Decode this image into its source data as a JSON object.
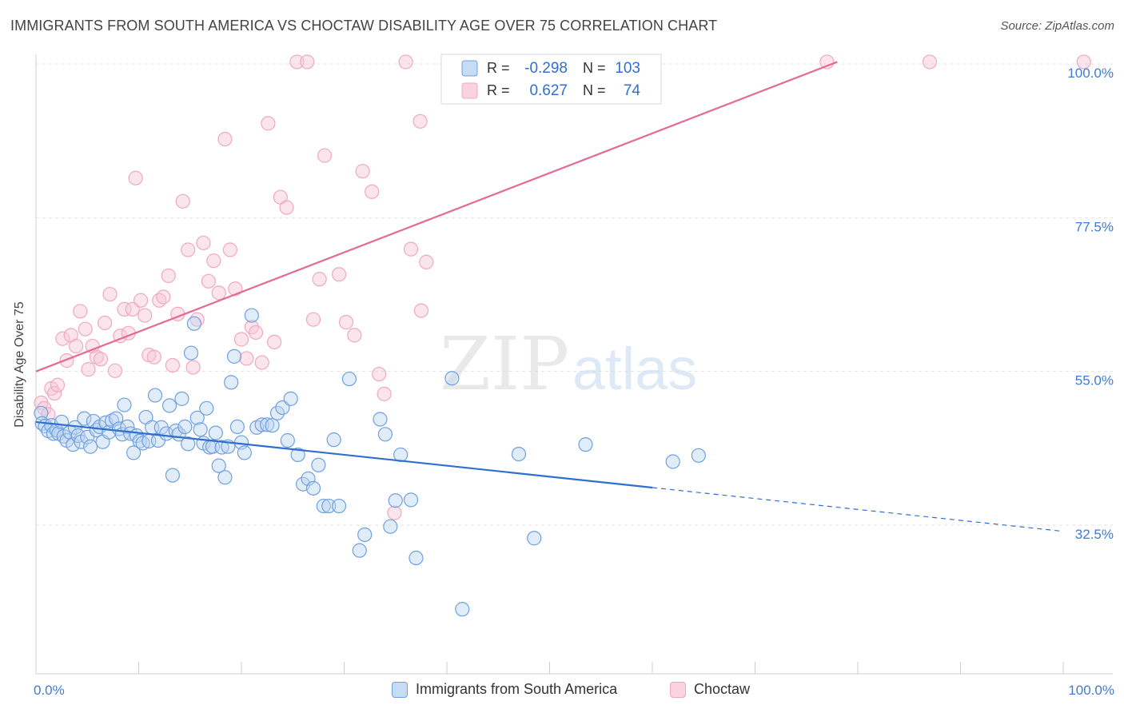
{
  "title": "IMMIGRANTS FROM SOUTH AMERICA VS CHOCTAW DISABILITY AGE OVER 75 CORRELATION CHART",
  "source": "Source: ZipAtlas.com",
  "watermark": {
    "zip": "ZIP",
    "atlas": "atlas"
  },
  "chart_data": {
    "type": "scatter",
    "xlabel": "",
    "ylabel": "Disability Age Over 75",
    "xlim": [
      0,
      100
    ],
    "ylim": [
      14,
      102
    ],
    "x_tick_labels": [
      {
        "value": 0,
        "label": "0.0%"
      },
      {
        "value": 100,
        "label": "100.0%"
      }
    ],
    "y_ticks": [
      {
        "value": 100.0,
        "label": "100.0%"
      },
      {
        "value": 77.5,
        "label": "77.5%"
      },
      {
        "value": 55.0,
        "label": "55.0%"
      },
      {
        "value": 32.5,
        "label": "32.5%"
      }
    ],
    "grid": true,
    "legend_top": [
      {
        "r_label": "R =",
        "r_value": "-0.298",
        "n_label": "N =",
        "n_value": "103"
      },
      {
        "r_label": "R =",
        "r_value": "0.627",
        "n_label": "N =",
        "n_value": "74"
      }
    ],
    "series": [
      {
        "name": "Immigrants from South America",
        "color": "#6fa0e0",
        "line_color": "#2f6fd0",
        "trend": {
          "x0": 0,
          "y0": 47.6,
          "x1": 60,
          "y1": 38.0,
          "dash_to_x": 100,
          "dash_y": 31.6
        },
        "points": [
          [
            0.5,
            48.9
          ],
          [
            0.6,
            47.4
          ],
          [
            0.9,
            47.0
          ],
          [
            1.2,
            46.3
          ],
          [
            1.5,
            47.1
          ],
          [
            1.7,
            45.9
          ],
          [
            2.0,
            46.4
          ],
          [
            2.2,
            45.9
          ],
          [
            2.5,
            47.6
          ],
          [
            2.7,
            45.5
          ],
          [
            3.0,
            44.9
          ],
          [
            3.3,
            46.1
          ],
          [
            3.6,
            44.3
          ],
          [
            3.8,
            46.8
          ],
          [
            4.1,
            45.6
          ],
          [
            4.4,
            44.7
          ],
          [
            4.7,
            48.1
          ],
          [
            5.0,
            45.4
          ],
          [
            5.3,
            44.0
          ],
          [
            5.6,
            47.7
          ],
          [
            5.9,
            46.4
          ],
          [
            6.2,
            46.9
          ],
          [
            6.5,
            44.7
          ],
          [
            6.8,
            47.5
          ],
          [
            7.1,
            46.1
          ],
          [
            7.4,
            47.8
          ],
          [
            7.8,
            48.1
          ],
          [
            8.1,
            46.6
          ],
          [
            8.4,
            45.8
          ],
          [
            8.6,
            50.1
          ],
          [
            8.9,
            46.9
          ],
          [
            9.2,
            45.9
          ],
          [
            9.5,
            43.1
          ],
          [
            9.8,
            45.6
          ],
          [
            10.1,
            44.8
          ],
          [
            10.4,
            44.5
          ],
          [
            10.7,
            48.3
          ],
          [
            11.0,
            44.8
          ],
          [
            11.3,
            46.8
          ],
          [
            11.6,
            51.5
          ],
          [
            11.9,
            44.9
          ],
          [
            12.2,
            46.8
          ],
          [
            12.7,
            45.9
          ],
          [
            13.0,
            50.0
          ],
          [
            13.3,
            39.8
          ],
          [
            13.6,
            46.3
          ],
          [
            13.9,
            45.8
          ],
          [
            14.2,
            51.0
          ],
          [
            14.5,
            46.9
          ],
          [
            14.8,
            44.4
          ],
          [
            15.1,
            57.7
          ],
          [
            15.4,
            62.0
          ],
          [
            15.7,
            48.2
          ],
          [
            16.0,
            46.5
          ],
          [
            16.3,
            44.5
          ],
          [
            16.6,
            49.6
          ],
          [
            16.9,
            43.9
          ],
          [
            17.2,
            44.0
          ],
          [
            17.5,
            46.0
          ],
          [
            17.8,
            41.2
          ],
          [
            18.1,
            43.9
          ],
          [
            18.4,
            39.5
          ],
          [
            18.7,
            44.0
          ],
          [
            19.0,
            53.4
          ],
          [
            19.3,
            57.2
          ],
          [
            19.6,
            46.9
          ],
          [
            20.0,
            44.6
          ],
          [
            20.3,
            43.1
          ],
          [
            21.0,
            63.2
          ],
          [
            21.5,
            46.8
          ],
          [
            22.0,
            47.2
          ],
          [
            22.5,
            47.2
          ],
          [
            23.0,
            47.1
          ],
          [
            23.5,
            48.9
          ],
          [
            24.0,
            49.7
          ],
          [
            24.5,
            44.9
          ],
          [
            24.8,
            51.0
          ],
          [
            25.5,
            42.8
          ],
          [
            26.0,
            38.5
          ],
          [
            26.5,
            39.3
          ],
          [
            27.0,
            37.9
          ],
          [
            27.5,
            41.3
          ],
          [
            28.0,
            35.3
          ],
          [
            28.5,
            35.3
          ],
          [
            29.0,
            45.0
          ],
          [
            29.5,
            35.3
          ],
          [
            30.5,
            53.9
          ],
          [
            31.5,
            28.8
          ],
          [
            32.0,
            31.1
          ],
          [
            33.5,
            48.0
          ],
          [
            34.0,
            45.8
          ],
          [
            34.5,
            32.3
          ],
          [
            35.0,
            36.1
          ],
          [
            35.5,
            42.8
          ],
          [
            36.5,
            36.2
          ],
          [
            37.0,
            27.7
          ],
          [
            40.5,
            54.0
          ],
          [
            41.5,
            20.2
          ],
          [
            47.0,
            42.9
          ],
          [
            48.5,
            30.6
          ],
          [
            53.5,
            44.3
          ],
          [
            62.0,
            41.8
          ],
          [
            64.5,
            42.7
          ]
        ]
      },
      {
        "name": "Choctaw",
        "color": "#f0a8c0",
        "line_color": "#e46a95",
        "trend": {
          "x0": 0,
          "y0": 55.0,
          "x1": 78,
          "y1": 100.3
        },
        "points": [
          [
            0.5,
            50.4
          ],
          [
            0.8,
            49.6
          ],
          [
            1.2,
            48.7
          ],
          [
            1.5,
            52.5
          ],
          [
            1.8,
            51.8
          ],
          [
            2.1,
            53.0
          ],
          [
            2.6,
            59.8
          ],
          [
            3.0,
            56.6
          ],
          [
            3.4,
            60.3
          ],
          [
            3.9,
            58.7
          ],
          [
            4.3,
            63.8
          ],
          [
            4.8,
            61.2
          ],
          [
            5.1,
            55.3
          ],
          [
            5.5,
            58.7
          ],
          [
            5.9,
            57.1
          ],
          [
            6.3,
            56.8
          ],
          [
            6.7,
            62.1
          ],
          [
            7.2,
            66.3
          ],
          [
            7.7,
            55.1
          ],
          [
            8.2,
            60.2
          ],
          [
            8.6,
            64.1
          ],
          [
            9.0,
            60.6
          ],
          [
            9.4,
            64.1
          ],
          [
            9.7,
            83.3
          ],
          [
            10.2,
            65.4
          ],
          [
            10.6,
            63.2
          ],
          [
            11.0,
            57.4
          ],
          [
            11.5,
            57.1
          ],
          [
            12.0,
            65.4
          ],
          [
            12.4,
            65.9
          ],
          [
            12.9,
            69.0
          ],
          [
            13.3,
            55.9
          ],
          [
            13.8,
            63.4
          ],
          [
            14.3,
            79.9
          ],
          [
            14.8,
            72.8
          ],
          [
            15.3,
            55.6
          ],
          [
            15.7,
            62.6
          ],
          [
            16.3,
            73.8
          ],
          [
            16.8,
            68.2
          ],
          [
            17.3,
            71.2
          ],
          [
            17.8,
            66.5
          ],
          [
            18.4,
            89.0
          ],
          [
            18.9,
            72.8
          ],
          [
            19.4,
            67.1
          ],
          [
            20.0,
            59.7
          ],
          [
            20.5,
            56.9
          ],
          [
            21.0,
            61.5
          ],
          [
            21.4,
            60.7
          ],
          [
            22.0,
            56.3
          ],
          [
            22.6,
            91.3
          ],
          [
            23.2,
            59.3
          ],
          [
            23.8,
            80.5
          ],
          [
            24.4,
            79.0
          ],
          [
            25.4,
            100.3
          ],
          [
            26.4,
            100.3
          ],
          [
            27.0,
            62.6
          ],
          [
            27.6,
            68.5
          ],
          [
            28.1,
            86.6
          ],
          [
            29.5,
            69.2
          ],
          [
            30.2,
            62.2
          ],
          [
            31.0,
            60.3
          ],
          [
            31.8,
            84.3
          ],
          [
            32.7,
            81.3
          ],
          [
            33.4,
            54.6
          ],
          [
            33.9,
            51.7
          ],
          [
            34.9,
            34.3
          ],
          [
            36.5,
            72.9
          ],
          [
            37.4,
            91.6
          ],
          [
            36.0,
            100.3
          ],
          [
            37.5,
            63.9
          ],
          [
            38.0,
            71.0
          ],
          [
            77.0,
            100.3
          ],
          [
            87.0,
            100.3
          ],
          [
            102.0,
            100.3
          ]
        ]
      }
    ]
  }
}
